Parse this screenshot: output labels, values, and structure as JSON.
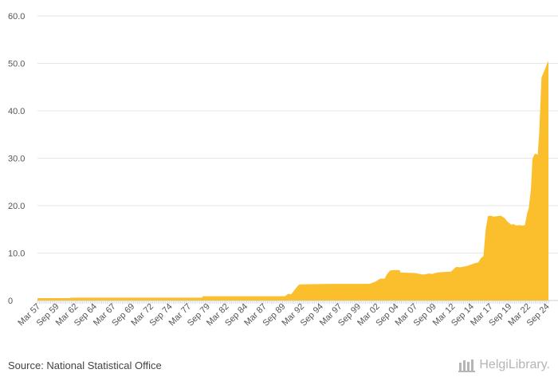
{
  "chart_data": {
    "type": "area",
    "color": "#FBBE2C",
    "ylim": [
      0,
      60
    ],
    "yticks": [
      {
        "value": 0,
        "label": "0"
      },
      {
        "value": 10,
        "label": "10.0"
      },
      {
        "value": 20,
        "label": "20.0"
      },
      {
        "value": 30,
        "label": "30.0"
      },
      {
        "value": 40,
        "label": "40.0"
      },
      {
        "value": 50,
        "label": "50.0"
      },
      {
        "value": 60,
        "label": "60.0"
      }
    ],
    "xlim": [
      1957.17,
      2024.92
    ],
    "xticks": [
      {
        "value": 1957.17,
        "label": "Mar 57"
      },
      {
        "value": 1959.67,
        "label": "Sep 59"
      },
      {
        "value": 1962.17,
        "label": "Mar 62"
      },
      {
        "value": 1964.67,
        "label": "Sep 64"
      },
      {
        "value": 1967.17,
        "label": "Mar 67"
      },
      {
        "value": 1969.67,
        "label": "Sep 69"
      },
      {
        "value": 1972.17,
        "label": "Mar 72"
      },
      {
        "value": 1974.67,
        "label": "Sep 74"
      },
      {
        "value": 1977.17,
        "label": "Mar 77"
      },
      {
        "value": 1979.67,
        "label": "Sep 79"
      },
      {
        "value": 1982.17,
        "label": "Mar 82"
      },
      {
        "value": 1984.67,
        "label": "Sep 84"
      },
      {
        "value": 1987.17,
        "label": "Mar 87"
      },
      {
        "value": 1989.67,
        "label": "Sep 89"
      },
      {
        "value": 1992.17,
        "label": "Mar 92"
      },
      {
        "value": 1994.67,
        "label": "Sep 94"
      },
      {
        "value": 1997.17,
        "label": "Mar 97"
      },
      {
        "value": 1999.67,
        "label": "Sep 99"
      },
      {
        "value": 2002.17,
        "label": "Mar 02"
      },
      {
        "value": 2004.67,
        "label": "Sep 04"
      },
      {
        "value": 2007.17,
        "label": "Mar 07"
      },
      {
        "value": 2009.67,
        "label": "Sep 09"
      },
      {
        "value": 2012.17,
        "label": "Mar 12"
      },
      {
        "value": 2014.67,
        "label": "Sep 14"
      },
      {
        "value": 2017.17,
        "label": "Mar 17"
      },
      {
        "value": 2019.67,
        "label": "Sep 19"
      },
      {
        "value": 2022.17,
        "label": "Mar 22"
      },
      {
        "value": 2024.67,
        "label": "Sep 24"
      }
    ],
    "x": [
      1957.17,
      1961.5,
      1961.6,
      1979.0,
      1979.1,
      1990.0,
      1990.4,
      1990.8,
      1991.3,
      1991.8,
      1992.1,
      1996.0,
      2001.2,
      2002.0,
      2002.6,
      2003.2,
      2003.5,
      2003.9,
      2004.4,
      2005.2,
      2005.3,
      2007.2,
      2008.1,
      2008.6,
      2009.0,
      2009.5,
      2010.2,
      2011.0,
      2012.0,
      2012.7,
      2013.2,
      2014.2,
      2015.2,
      2015.6,
      2016.0,
      2016.3,
      2016.6,
      2016.9,
      2017.3,
      2017.6,
      2018.2,
      2018.6,
      2019.1,
      2019.5,
      2020.0,
      2020.3,
      2020.7,
      2021.0,
      2021.5,
      2021.8,
      2022.1,
      2022.3,
      2022.6,
      2022.8,
      2023.0,
      2023.2,
      2023.5,
      2023.7,
      2024.0,
      2024.2,
      2024.5,
      2024.7,
      2024.92
    ],
    "values": [
      0.5,
      0.5,
      0.6,
      0.6,
      0.9,
      0.9,
      1.4,
      1.3,
      2.3,
      3.3,
      3.4,
      3.5,
      3.5,
      4.0,
      4.6,
      4.6,
      5.5,
      6.3,
      6.4,
      6.4,
      5.9,
      5.8,
      5.5,
      5.5,
      5.7,
      5.6,
      5.9,
      6.0,
      6.1,
      7.1,
      7.0,
      7.3,
      7.9,
      8.0,
      9.0,
      9.3,
      15.0,
      17.8,
      17.9,
      17.7,
      17.8,
      17.9,
      17.4,
      16.6,
      16.0,
      16.1,
      15.8,
      15.9,
      15.8,
      15.9,
      18.4,
      19.4,
      23.5,
      29.8,
      30.6,
      31.0,
      30.7,
      35.5,
      47.0,
      47.8,
      48.9,
      49.8,
      50.5
    ],
    "title": "",
    "xlabel": "",
    "ylabel": "",
    "grid": true,
    "legend": "none"
  },
  "footer": {
    "source": "Source: National Statistical Office",
    "logo_text": "HelgiLibrary."
  }
}
